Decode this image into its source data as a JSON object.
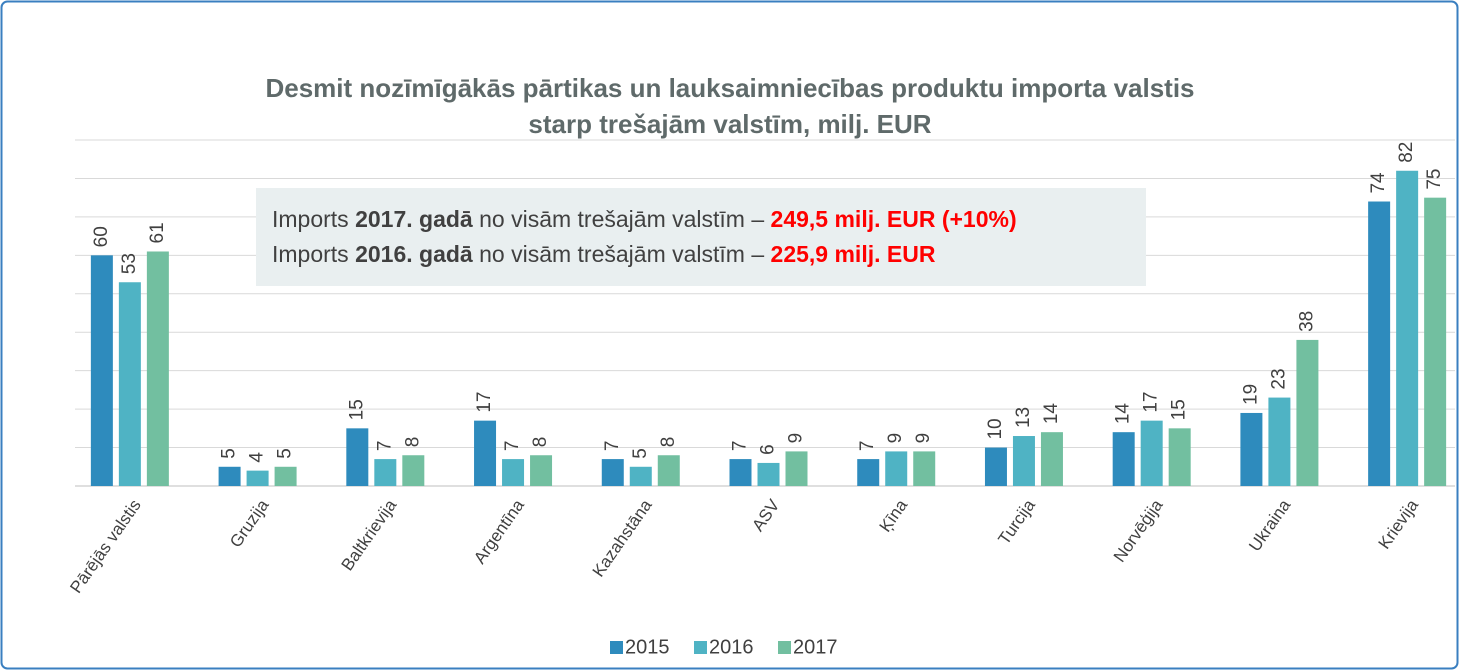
{
  "chart_data": {
    "type": "bar",
    "title": [
      "Desmit nozīmīgākās pārtikas un lauksaimniecības produktu importa valstis",
      "starp trešajām valstīm, milj. EUR"
    ],
    "annotation": [
      [
        "Imports ",
        "2017. gadā",
        " no visām trešajām valstīm – ",
        "249,5 milj. EUR (+10%)"
      ],
      [
        "Imports ",
        "2016. gadā",
        " no visām trešajām valstīm – ",
        "225,9 milj. EUR"
      ]
    ],
    "categories": [
      "Pārējās valstis",
      "Gruzija",
      "Baltkrievija",
      "Argentīna",
      "Kazahstāna",
      "ASV",
      "Ķīna",
      "Turcija",
      "Norvēģija",
      "Ukraina",
      "Krievija"
    ],
    "series": [
      {
        "name": "2015",
        "color": "#2e8bbd",
        "values": [
          60,
          5,
          15,
          17,
          7,
          7,
          7,
          10,
          14,
          19,
          74
        ]
      },
      {
        "name": "2016",
        "color": "#4fb3c4",
        "values": [
          53,
          4,
          7,
          7,
          5,
          6,
          9,
          13,
          17,
          23,
          82
        ]
      },
      {
        "name": "2017",
        "color": "#72bfa0",
        "values": [
          61,
          5,
          8,
          8,
          8,
          9,
          9,
          14,
          15,
          38,
          75
        ]
      }
    ],
    "ylim": [
      0,
      90
    ],
    "yticks": [
      0,
      10,
      20,
      30,
      40,
      50,
      60,
      70,
      80,
      90
    ],
    "grid": true,
    "legend": "bottom"
  }
}
